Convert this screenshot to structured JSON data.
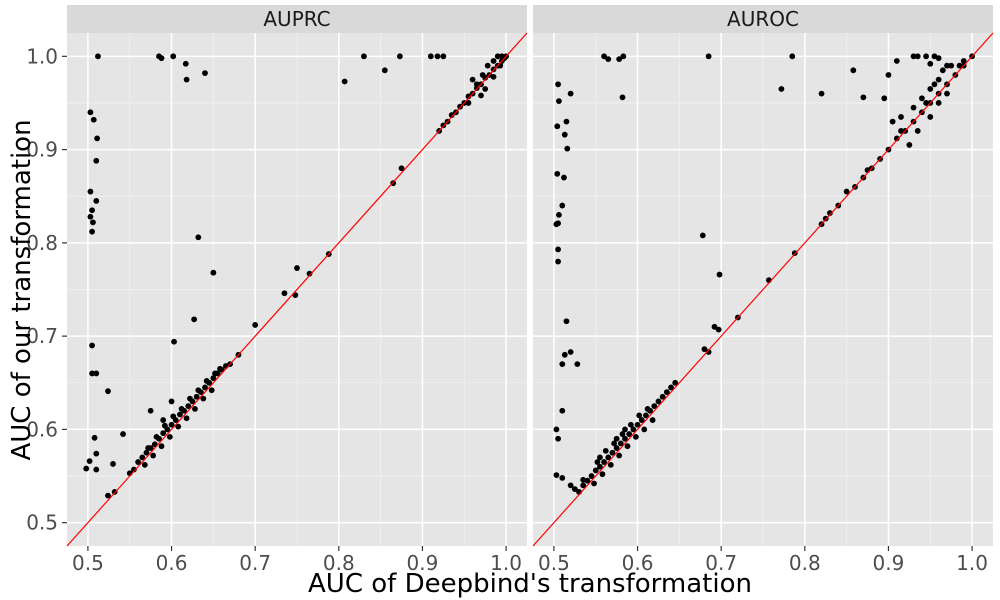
{
  "chart_data": {
    "type": "scatter",
    "xlabel": "AUC of Deepbind's transformation",
    "ylabel": "AUC of our transformation",
    "xlim": [
      0.475,
      1.025
    ],
    "ylim": [
      0.475,
      1.025
    ],
    "x_ticks": [
      "0.5",
      "0.6",
      "0.7",
      "0.8",
      "0.9",
      "1.0"
    ],
    "y_ticks": [
      "0.5",
      "0.6",
      "0.7",
      "0.8",
      "0.9",
      "1.0"
    ],
    "grid": true,
    "reference_line": {
      "slope": 1,
      "intercept": 0,
      "color": "#ff0000"
    },
    "point_color": "#000000",
    "panel_background": "#e5e5e5",
    "strip_background": "#d9d9d9",
    "panels": [
      {
        "name": "AUPRC",
        "points": [
          [
            0.512,
            1.0
          ],
          [
            0.585,
            1.0
          ],
          [
            0.588,
            0.998
          ],
          [
            0.602,
            1.0
          ],
          [
            0.617,
            0.992
          ],
          [
            0.618,
            0.975
          ],
          [
            0.64,
            0.982
          ],
          [
            0.83,
            1.0
          ],
          [
            0.855,
            0.985
          ],
          [
            0.873,
            1.0
          ],
          [
            0.807,
            0.973
          ],
          [
            0.91,
            1.0
          ],
          [
            0.918,
            1.0
          ],
          [
            0.925,
            1.0
          ],
          [
            0.503,
            0.94
          ],
          [
            0.507,
            0.932
          ],
          [
            0.511,
            0.912
          ],
          [
            0.51,
            0.888
          ],
          [
            0.503,
            0.855
          ],
          [
            0.51,
            0.845
          ],
          [
            0.505,
            0.835
          ],
          [
            0.503,
            0.828
          ],
          [
            0.506,
            0.822
          ],
          [
            0.505,
            0.812
          ],
          [
            0.505,
            0.69
          ],
          [
            0.505,
            0.66
          ],
          [
            0.51,
            0.66
          ],
          [
            0.524,
            0.641
          ],
          [
            0.508,
            0.591
          ],
          [
            0.51,
            0.574
          ],
          [
            0.502,
            0.566
          ],
          [
            0.498,
            0.558
          ],
          [
            0.51,
            0.557
          ],
          [
            0.524,
            0.529
          ],
          [
            0.532,
            0.533
          ],
          [
            0.53,
            0.563
          ],
          [
            0.542,
            0.595
          ],
          [
            0.603,
            0.694
          ],
          [
            0.627,
            0.718
          ],
          [
            0.632,
            0.806
          ],
          [
            0.65,
            0.768
          ],
          [
            0.7,
            0.712
          ],
          [
            0.735,
            0.746
          ],
          [
            0.748,
            0.744
          ],
          [
            0.75,
            0.773
          ],
          [
            0.765,
            0.767
          ],
          [
            0.788,
            0.788
          ],
          [
            0.865,
            0.864
          ],
          [
            0.875,
            0.88
          ],
          [
            0.55,
            0.553
          ],
          [
            0.555,
            0.557
          ],
          [
            0.56,
            0.565
          ],
          [
            0.565,
            0.57
          ],
          [
            0.57,
            0.575
          ],
          [
            0.575,
            0.58
          ],
          [
            0.58,
            0.584
          ],
          [
            0.585,
            0.59
          ],
          [
            0.59,
            0.596
          ],
          [
            0.595,
            0.6
          ],
          [
            0.6,
            0.605
          ],
          [
            0.605,
            0.61
          ],
          [
            0.61,
            0.616
          ],
          [
            0.615,
            0.62
          ],
          [
            0.62,
            0.625
          ],
          [
            0.625,
            0.63
          ],
          [
            0.63,
            0.635
          ],
          [
            0.635,
            0.64
          ],
          [
            0.64,
            0.645
          ],
          [
            0.645,
            0.65
          ],
          [
            0.65,
            0.655
          ],
          [
            0.655,
            0.66
          ],
          [
            0.66,
            0.664
          ],
          [
            0.665,
            0.668
          ],
          [
            0.67,
            0.67
          ],
          [
            0.68,
            0.68
          ],
          [
            0.568,
            0.562
          ],
          [
            0.578,
            0.572
          ],
          [
            0.588,
            0.582
          ],
          [
            0.598,
            0.592
          ],
          [
            0.608,
            0.603
          ],
          [
            0.618,
            0.612
          ],
          [
            0.628,
            0.622
          ],
          [
            0.638,
            0.633
          ],
          [
            0.648,
            0.642
          ],
          [
            0.572,
            0.58
          ],
          [
            0.582,
            0.592
          ],
          [
            0.592,
            0.604
          ],
          [
            0.602,
            0.614
          ],
          [
            0.612,
            0.622
          ],
          [
            0.622,
            0.633
          ],
          [
            0.632,
            0.642
          ],
          [
            0.642,
            0.652
          ],
          [
            0.575,
            0.62
          ],
          [
            0.59,
            0.61
          ],
          [
            0.6,
            0.63
          ],
          [
            0.652,
            0.66
          ],
          [
            0.658,
            0.665
          ],
          [
            0.92,
            0.92
          ],
          [
            0.925,
            0.926
          ],
          [
            0.93,
            0.93
          ],
          [
            0.935,
            0.937
          ],
          [
            0.94,
            0.94
          ],
          [
            0.945,
            0.946
          ],
          [
            0.95,
            0.95
          ],
          [
            0.955,
            0.957
          ],
          [
            0.96,
            0.96
          ],
          [
            0.965,
            0.966
          ],
          [
            0.97,
            0.97
          ],
          [
            0.975,
            0.977
          ],
          [
            0.98,
            0.98
          ],
          [
            0.985,
            0.986
          ],
          [
            0.99,
            0.99
          ],
          [
            0.995,
            0.995
          ],
          [
            0.998,
            0.998
          ],
          [
            1.0,
            1.0
          ],
          [
            0.96,
            0.975
          ],
          [
            0.965,
            0.97
          ],
          [
            0.972,
            0.98
          ],
          [
            0.978,
            0.99
          ],
          [
            0.985,
            0.995
          ],
          [
            0.99,
            1.0
          ],
          [
            0.995,
            1.0
          ],
          [
            0.975,
            0.965
          ],
          [
            0.985,
            0.978
          ],
          [
            0.993,
            0.99
          ],
          [
            0.97,
            0.958
          ],
          [
            0.955,
            0.95
          ]
        ]
      },
      {
        "name": "AUROC",
        "points": [
          [
            0.56,
            1.0
          ],
          [
            0.565,
            0.997
          ],
          [
            0.578,
            0.997
          ],
          [
            0.583,
            1.0
          ],
          [
            0.582,
            0.956
          ],
          [
            0.685,
            1.0
          ],
          [
            0.772,
            0.965
          ],
          [
            0.785,
            1.0
          ],
          [
            0.82,
            0.96
          ],
          [
            0.858,
            0.985
          ],
          [
            0.87,
            0.956
          ],
          [
            0.9,
            0.98
          ],
          [
            0.91,
            0.995
          ],
          [
            0.93,
            1.0
          ],
          [
            0.935,
            1.0
          ],
          [
            0.945,
            1.0
          ],
          [
            0.95,
            0.992
          ],
          [
            0.955,
            1.0
          ],
          [
            0.96,
            0.998
          ],
          [
            0.895,
            0.955
          ],
          [
            0.505,
            0.97
          ],
          [
            0.506,
            0.952
          ],
          [
            0.504,
            0.925
          ],
          [
            0.513,
            0.916
          ],
          [
            0.515,
            0.93
          ],
          [
            0.52,
            0.96
          ],
          [
            0.516,
            0.901
          ],
          [
            0.512,
            0.87
          ],
          [
            0.504,
            0.874
          ],
          [
            0.505,
            0.821
          ],
          [
            0.506,
            0.83
          ],
          [
            0.51,
            0.84
          ],
          [
            0.503,
            0.82
          ],
          [
            0.505,
            0.793
          ],
          [
            0.505,
            0.78
          ],
          [
            0.515,
            0.716
          ],
          [
            0.513,
            0.68
          ],
          [
            0.51,
            0.67
          ],
          [
            0.528,
            0.67
          ],
          [
            0.52,
            0.683
          ],
          [
            0.51,
            0.62
          ],
          [
            0.503,
            0.6
          ],
          [
            0.505,
            0.59
          ],
          [
            0.503,
            0.551
          ],
          [
            0.51,
            0.548
          ],
          [
            0.52,
            0.54
          ],
          [
            0.525,
            0.536
          ],
          [
            0.53,
            0.533
          ],
          [
            0.535,
            0.54
          ],
          [
            0.535,
            0.546
          ],
          [
            0.678,
            0.808
          ],
          [
            0.698,
            0.766
          ],
          [
            0.692,
            0.71
          ],
          [
            0.697,
            0.707
          ],
          [
            0.68,
            0.686
          ],
          [
            0.685,
            0.683
          ],
          [
            0.72,
            0.72
          ],
          [
            0.757,
            0.76
          ],
          [
            0.788,
            0.789
          ],
          [
            0.82,
            0.82
          ],
          [
            0.825,
            0.826
          ],
          [
            0.83,
            0.832
          ],
          [
            0.84,
            0.84
          ],
          [
            0.85,
            0.855
          ],
          [
            0.86,
            0.86
          ],
          [
            0.87,
            0.87
          ],
          [
            0.875,
            0.878
          ],
          [
            0.88,
            0.88
          ],
          [
            0.89,
            0.89
          ],
          [
            0.9,
            0.9
          ],
          [
            0.91,
            0.912
          ],
          [
            0.915,
            0.92
          ],
          [
            0.92,
            0.92
          ],
          [
            0.93,
            0.93
          ],
          [
            0.94,
            0.94
          ],
          [
            0.95,
            0.95
          ],
          [
            0.96,
            0.96
          ],
          [
            0.97,
            0.97
          ],
          [
            0.98,
            0.98
          ],
          [
            0.99,
            0.99
          ],
          [
            1.0,
            1.0
          ],
          [
            0.93,
            0.945
          ],
          [
            0.94,
            0.955
          ],
          [
            0.945,
            0.95
          ],
          [
            0.95,
            0.965
          ],
          [
            0.955,
            0.97
          ],
          [
            0.96,
            0.975
          ],
          [
            0.965,
            0.985
          ],
          [
            0.97,
            0.99
          ],
          [
            0.975,
            0.99
          ],
          [
            0.95,
            0.935
          ],
          [
            0.96,
            0.95
          ],
          [
            0.97,
            0.96
          ],
          [
            0.985,
            0.99
          ],
          [
            0.99,
            0.995
          ],
          [
            0.905,
            0.93
          ],
          [
            0.915,
            0.935
          ],
          [
            0.935,
            0.92
          ],
          [
            0.925,
            0.905
          ],
          [
            0.54,
            0.545
          ],
          [
            0.545,
            0.55
          ],
          [
            0.55,
            0.556
          ],
          [
            0.555,
            0.56
          ],
          [
            0.56,
            0.565
          ],
          [
            0.565,
            0.57
          ],
          [
            0.57,
            0.575
          ],
          [
            0.575,
            0.58
          ],
          [
            0.58,
            0.585
          ],
          [
            0.585,
            0.59
          ],
          [
            0.59,
            0.595
          ],
          [
            0.595,
            0.6
          ],
          [
            0.6,
            0.605
          ],
          [
            0.605,
            0.61
          ],
          [
            0.61,
            0.615
          ],
          [
            0.615,
            0.62
          ],
          [
            0.62,
            0.625
          ],
          [
            0.625,
            0.63
          ],
          [
            0.548,
            0.542
          ],
          [
            0.558,
            0.552
          ],
          [
            0.568,
            0.562
          ],
          [
            0.578,
            0.572
          ],
          [
            0.588,
            0.582
          ],
          [
            0.598,
            0.592
          ],
          [
            0.608,
            0.6
          ],
          [
            0.618,
            0.61
          ],
          [
            0.552,
            0.565
          ],
          [
            0.562,
            0.577
          ],
          [
            0.572,
            0.585
          ],
          [
            0.582,
            0.595
          ],
          [
            0.592,
            0.605
          ],
          [
            0.602,
            0.615
          ],
          [
            0.612,
            0.622
          ],
          [
            0.63,
            0.635
          ],
          [
            0.635,
            0.64
          ],
          [
            0.64,
            0.645
          ],
          [
            0.645,
            0.65
          ],
          [
            0.555,
            0.57
          ],
          [
            0.575,
            0.59
          ],
          [
            0.585,
            0.6
          ]
        ]
      }
    ]
  }
}
